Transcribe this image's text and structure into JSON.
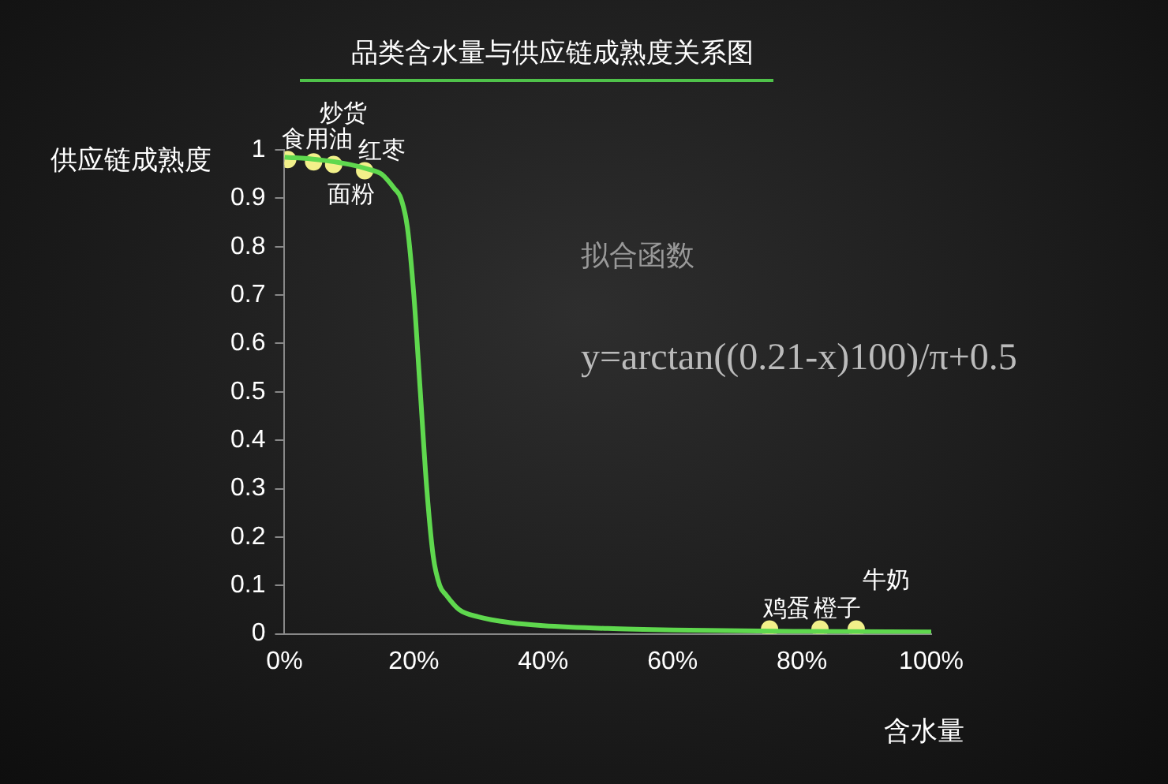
{
  "chart_data": {
    "type": "line",
    "title": "品类含水量与供应链成熟度关系图",
    "xlabel": "含水量",
    "ylabel": "供应链成熟度",
    "xlim": [
      0,
      100
    ],
    "xticks": [
      {
        "value": 0,
        "label": "0%"
      },
      {
        "value": 20,
        "label": "20%"
      },
      {
        "value": 40,
        "label": "40%"
      },
      {
        "value": 60,
        "label": "60%"
      },
      {
        "value": 80,
        "label": "80%"
      },
      {
        "value": 100,
        "label": "100%"
      }
    ],
    "ylim": [
      0,
      1
    ],
    "yticks": [
      0,
      0.1,
      0.2,
      0.3,
      0.4,
      0.5,
      0.6,
      0.7,
      0.8,
      0.9,
      1
    ],
    "grid": false,
    "legend": false,
    "series": [
      {
        "type": "line",
        "color": "#5fd84e",
        "marker": "none",
        "x": [
          0,
          5,
          10,
          13,
          15,
          17,
          18,
          19,
          20,
          21,
          22,
          23,
          24,
          25,
          27,
          30,
          35,
          40,
          50,
          60,
          80,
          100
        ],
        "values": [
          0.985,
          0.98,
          0.97,
          0.96,
          0.95,
          0.92,
          0.9,
          0.84,
          0.7,
          0.5,
          0.3,
          0.16,
          0.1,
          0.08,
          0.05,
          0.035,
          0.023,
          0.017,
          0.011,
          0.008,
          0.005,
          0.004
        ]
      },
      {
        "type": "scatter",
        "color": "#f2f08a",
        "marker": "circle",
        "x": [
          0.5,
          4.5,
          7.6,
          12.4,
          75,
          82.8,
          88.4
        ],
        "values": [
          0.98,
          0.975,
          0.97,
          0.957,
          0.01,
          0.01,
          0.01
        ]
      }
    ],
    "annotations": [
      {
        "text": "食用油",
        "x": 0.5,
        "y": 0.98
      },
      {
        "text": "炒货",
        "x": 4.5,
        "y": 0.975
      },
      {
        "text": "面粉",
        "x": 7.6,
        "y": 0.97
      },
      {
        "text": "红枣",
        "x": 12.4,
        "y": 0.957
      },
      {
        "text": "鸡蛋",
        "x": 75,
        "y": 0.01
      },
      {
        "text": "橙子",
        "x": 82.8,
        "y": 0.01
      },
      {
        "text": "牛奶",
        "x": 88.4,
        "y": 0.01
      },
      "拟合函数",
      "y=arctan((0.21-x)100)/π+0.5"
    ]
  }
}
